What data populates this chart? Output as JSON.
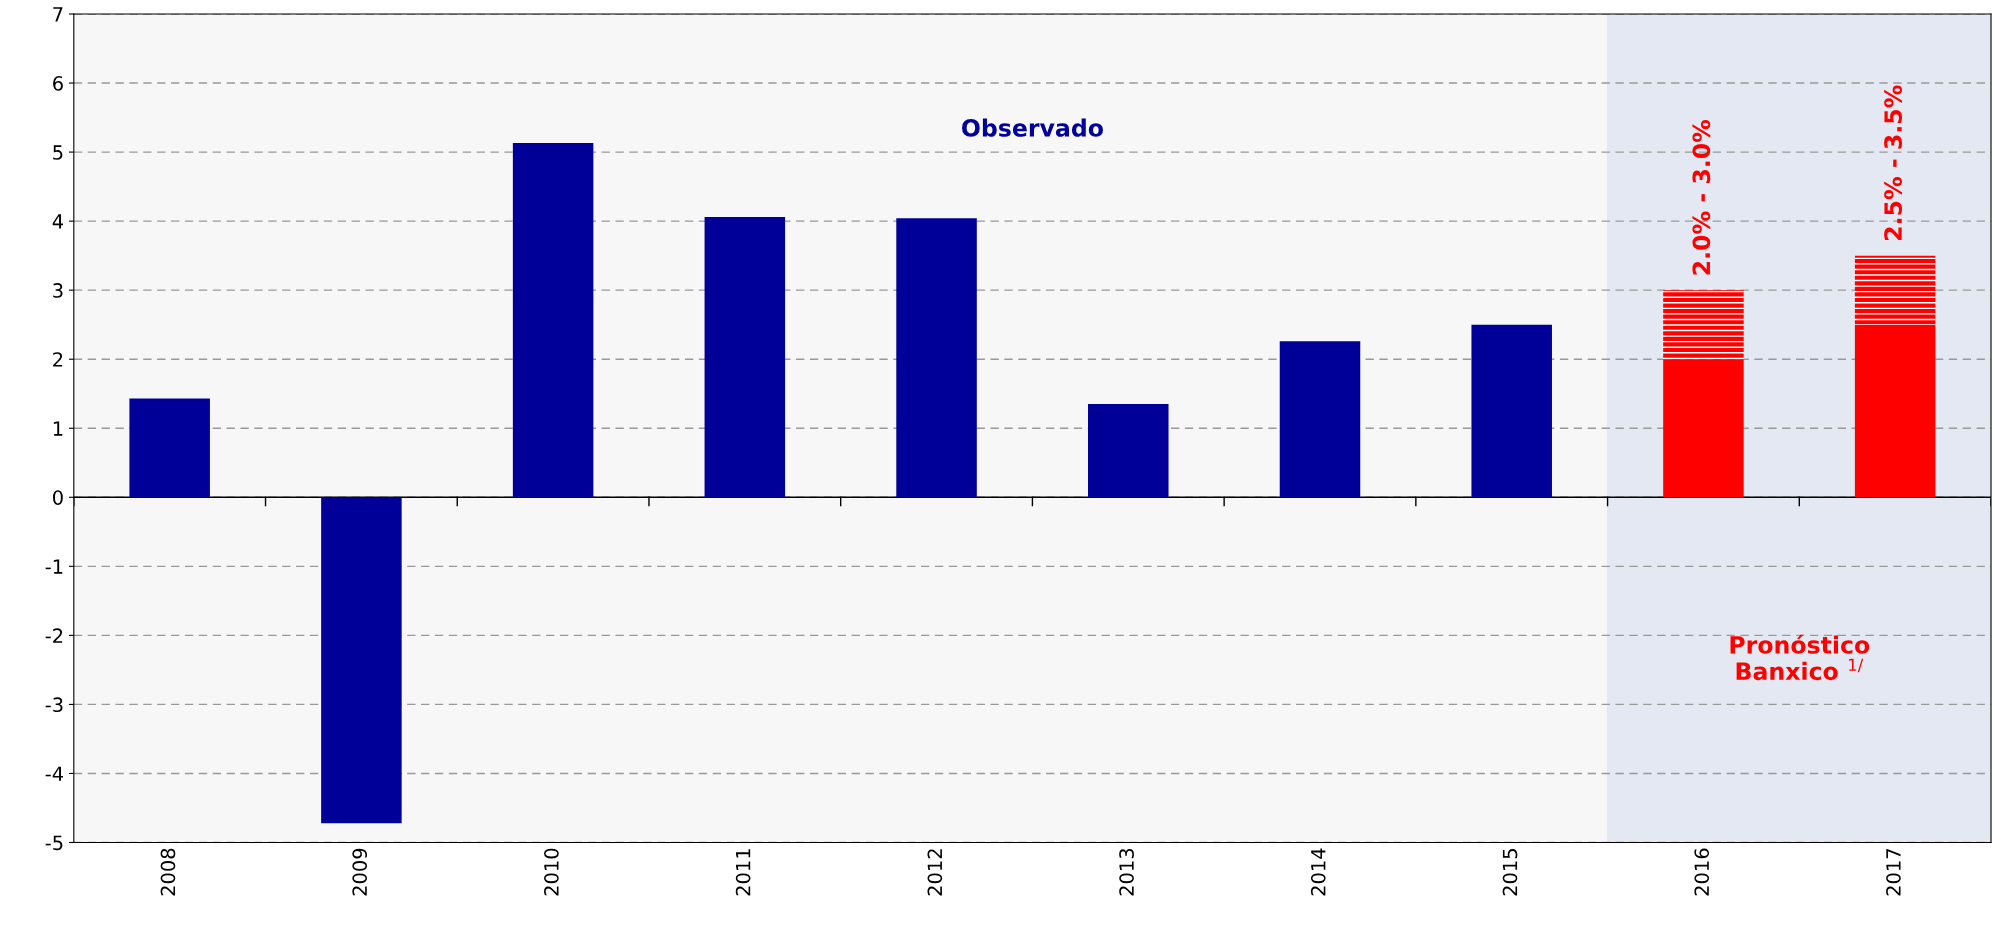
{
  "chart_data": {
    "type": "bar",
    "stacked": true,
    "categories": [
      "2008",
      "2009",
      "2010",
      "2011",
      "2012",
      "2013",
      "2014",
      "2015",
      "2016",
      "2017"
    ],
    "series": [
      {
        "colors": [
          "#000099",
          "#000099",
          "#000099",
          "#000099",
          "#000099",
          "#000099",
          "#000099",
          "#000099",
          "#ff0000",
          "#ff0000"
        ],
        "values": [
          1.43,
          -4.72,
          5.13,
          4.06,
          4.04,
          1.35,
          2.26,
          2.5,
          2.0,
          2.5
        ]
      },
      {
        "color": "#ff0000",
        "values": [
          null,
          null,
          null,
          null,
          null,
          null,
          null,
          null,
          1.0,
          1.0
        ]
      }
    ],
    "ylim": [
      -5,
      7
    ],
    "yticks": [
      -5,
      -4,
      -3,
      -2,
      -1,
      0,
      1,
      2,
      3,
      4,
      5,
      6,
      7
    ],
    "grid": "y",
    "ref_lines": [
      {
        "axis": "y",
        "value": 0,
        "color": "#000000"
      }
    ],
    "bands": [
      {
        "axis": "x",
        "from": "2016",
        "to": "2017",
        "label": "Pronóstico\nBanxico $^{1/}$",
        "color": "#e3e8f2"
      }
    ],
    "annotations": [
      "Observado",
      {
        "text": "2.0% - 3.0%",
        "x": "2016",
        "y": 3.0
      },
      {
        "text": "2.5% - 3.5%",
        "x": "2017",
        "y": 3.5
      }
    ]
  }
}
